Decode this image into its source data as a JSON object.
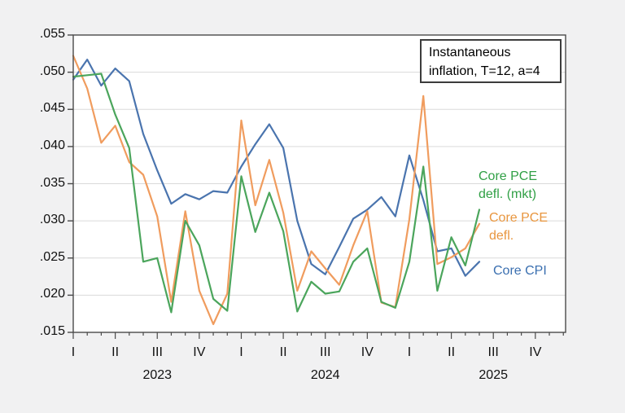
{
  "window": {
    "background_color": "#f1f1f2",
    "plot_background_color": "#ffffff",
    "axis_color": "#4a4a4a",
    "grid_color": "#dadada"
  },
  "annotation_box": {
    "line1": "Instantaneous",
    "line2": "inflation, T=12, a=4"
  },
  "chart_data": {
    "type": "line",
    "frequency": "monthly",
    "x_start": "2023-01",
    "x_end": "2025-06",
    "grid": "horizontal",
    "legend_position": "floating-right-labels",
    "x_axis": {
      "quarter_tick_labels": [
        "I",
        "II",
        "III",
        "IV",
        "I",
        "II",
        "III",
        "IV",
        "I",
        "II",
        "III",
        "IV"
      ],
      "year_labels": [
        "2023",
        "2024",
        "2025"
      ]
    },
    "y_axis": {
      "min": 0.015,
      "max": 0.055,
      "tick_labels": [
        ".055",
        ".050",
        ".045",
        ".040",
        ".035",
        ".030",
        ".025",
        ".020",
        ".015"
      ]
    },
    "series": [
      {
        "name": "Core CPI",
        "color": "#4a74ae",
        "values": [
          0.049,
          0.0517,
          0.0482,
          0.0505,
          0.0488,
          0.0417,
          0.0368,
          0.0323,
          0.0336,
          0.0329,
          0.034,
          0.0338,
          0.0373,
          0.0403,
          0.043,
          0.0398,
          0.03,
          0.0242,
          0.0228,
          0.0265,
          0.0303,
          0.0315,
          0.0332,
          0.0306,
          0.0388,
          0.0328,
          0.0259,
          0.0263,
          0.0226,
          0.0245
        ]
      },
      {
        "name": "Core PCE defl.",
        "color": "#f09c5e",
        "values": [
          0.0522,
          0.0478,
          0.0405,
          0.0428,
          0.0379,
          0.0362,
          0.0306,
          0.0191,
          0.0313,
          0.0206,
          0.0161,
          0.0202,
          0.0435,
          0.0321,
          0.0382,
          0.0311,
          0.0206,
          0.0259,
          0.0236,
          0.0214,
          0.0267,
          0.0313,
          0.019,
          0.0184,
          0.0302,
          0.0468,
          0.0242,
          0.0251,
          0.0263,
          0.0296
        ]
      },
      {
        "name": "Core PCE defl. (mkt)",
        "color": "#4ba55c",
        "values": [
          0.0494,
          0.0496,
          0.0498,
          0.0443,
          0.0398,
          0.0245,
          0.025,
          0.0177,
          0.03,
          0.0267,
          0.0195,
          0.0179,
          0.036,
          0.0285,
          0.0338,
          0.0286,
          0.0178,
          0.0218,
          0.0202,
          0.0205,
          0.0245,
          0.0263,
          0.0191,
          0.0183,
          0.0245,
          0.0373,
          0.0206,
          0.0278,
          0.024,
          0.0315
        ]
      }
    ],
    "series_labels": [
      {
        "series": "Core PCE defl. (mkt)",
        "line1": "Core PCE",
        "line2": "defl. (mkt)",
        "color": "#31a046"
      },
      {
        "series": "Core PCE defl.",
        "line1": "Core PCE",
        "line2": "defl.",
        "color": "#e8963f"
      },
      {
        "series": "Core CPI",
        "line1": "Core CPI",
        "line2": "",
        "color": "#3a6fb0"
      }
    ]
  }
}
